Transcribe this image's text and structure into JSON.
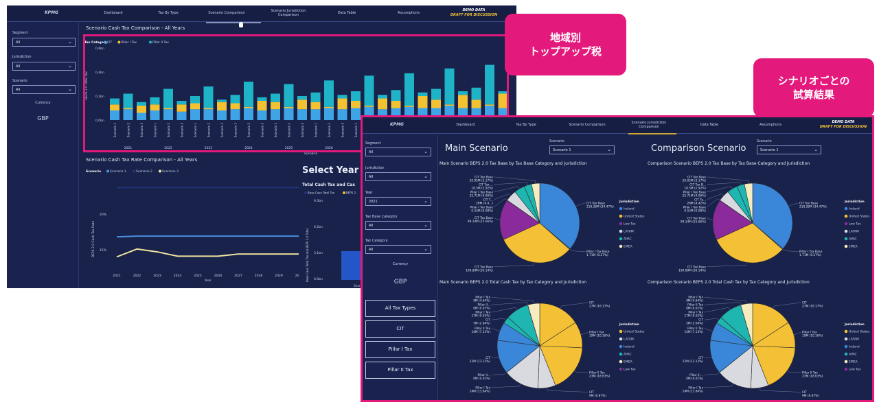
{
  "colors": {
    "accent": "#e4197c",
    "cit": "#3fa4e6",
    "pillar1": "#f2c232",
    "pillar2": "#1fb3c8",
    "Ireland": "#3a86d8",
    "United States": "#f4c136",
    "Low Tax": "#8a2a9b",
    "LATAM": "#d9d9e0",
    "APAC": "#1fb5b0",
    "EMEA": "#f7ecc0"
  },
  "callouts": {
    "regional": "地域別\nトップアップ税",
    "scenario": "シナリオごとの\n試算結果"
  },
  "nav": {
    "logo": "KPMG",
    "items": [
      "Dashboard",
      "Tax By Type",
      "Scenario Comparison",
      "Scenario Jurisdiction Comparison",
      "Data Table",
      "Assumptions"
    ],
    "demo": "DEMO DATA",
    "draft": "DRAFT FOR DISCUSSION"
  },
  "back": {
    "sidebar": {
      "segment_label": "Segment",
      "segment": "All",
      "jurisdiction_label": "Jurisdiction",
      "jurisdiction": "All",
      "scenario_label": "Scenario",
      "scenario": "All",
      "currency_label": "Currency",
      "currency": "GBP"
    },
    "bar_title": "Scenario Cash Tax Comparison - All Years",
    "line_title": "Scenario Cash Tax Rate Comparison - All Years",
    "select_year": "Select Year for",
    "right_title": "Total Cash Tax and Cas",
    "right_legend": [
      "Base Case Total Tax",
      "BEPS 2."
    ],
    "right_yticks": [
      "9.3bn",
      "6.2bn",
      "3.1bn",
      "0.0bn"
    ],
    "right_ylabel": "Base Case Total Tax and BEPS 2.0 Total",
    "right_xlabel": "Scena"
  },
  "chart_data": [
    {
      "type": "bar",
      "stacked": true,
      "legend_title": "Tax Category",
      "legend_position": "top-left",
      "ylabel": "BEPS 2.0 Total Tax",
      "xlabel": "Scenario",
      "yticks": [
        "0.0bn",
        "0.2bn",
        "0.4bn",
        "0.6bn"
      ],
      "ylim": [
        0,
        0.6
      ],
      "years": [
        "2021",
        "2022",
        "2023",
        "2024",
        "2025",
        "2026",
        "2027",
        "2028",
        "2029",
        "2030"
      ],
      "scenarios": [
        "Scenario 1",
        "Scenario 2",
        "Scenario 3"
      ],
      "series": [
        {
          "name": "CIT",
          "values": [
            0.08,
            0.09,
            0.06,
            0.08,
            0.09,
            0.07,
            0.09,
            0.09,
            0.08,
            0.09,
            0.1,
            0.08,
            0.09,
            0.1,
            0.09,
            0.09,
            0.1,
            0.09,
            0.1,
            0.11,
            0.09,
            0.1,
            0.11,
            0.1,
            0.1,
            0.12,
            0.1,
            0.1,
            0.12,
            0.1
          ]
        },
        {
          "name": "Pillar I Tax",
          "values": [
            0.05,
            0.01,
            0.06,
            0.05,
            0.01,
            0.06,
            0.05,
            0.01,
            0.07,
            0.05,
            0.01,
            0.08,
            0.06,
            0.01,
            0.08,
            0.06,
            0.01,
            0.09,
            0.06,
            0.01,
            0.09,
            0.06,
            0.01,
            0.1,
            0.07,
            0.01,
            0.11,
            0.07,
            0.01,
            0.12
          ]
        },
        {
          "name": "Pillar II Tax",
          "values": [
            0.05,
            0.12,
            0.03,
            0.06,
            0.16,
            0.03,
            0.06,
            0.18,
            0.02,
            0.07,
            0.21,
            0.03,
            0.07,
            0.19,
            0.03,
            0.08,
            0.22,
            0.03,
            0.08,
            0.25,
            0.03,
            0.09,
            0.27,
            0.03,
            0.09,
            0.3,
            0.03,
            0.1,
            0.33,
            0.02
          ]
        }
      ]
    },
    {
      "type": "line",
      "legend_title": "Scenario",
      "xlabel": "Year",
      "ylabel": "BEPS 2.0 Cash Tax Rate",
      "yticks": [
        "15%",
        "20%"
      ],
      "ylim": [
        12.5,
        24.5
      ],
      "x": [
        "2021",
        "2022",
        "2023",
        "2024",
        "2025",
        "2026",
        "2027",
        "2028",
        "2029",
        "2030"
      ],
      "series": [
        {
          "name": "Scenario 1",
          "color": "#4a8fe0",
          "values": [
            16.8,
            16.9,
            16.9,
            16.9,
            16.9,
            16.9,
            16.9,
            16.9,
            16.9,
            16.9
          ]
        },
        {
          "name": "Scenario 2",
          "color": "#24347a",
          "values": [
            23.7,
            23.7,
            23.7,
            23.7,
            23.7,
            23.7,
            23.7,
            23.7,
            23.7,
            23.7
          ]
        },
        {
          "name": "Scenario 3",
          "color": "#f2e6a0",
          "values": [
            14.0,
            15.1,
            14.7,
            14.1,
            14.1,
            14.1,
            14.4,
            14.4,
            14.4,
            14.4
          ]
        }
      ]
    },
    {
      "type": "pie",
      "id": "main-base",
      "title": "Main Scenario BEPS 2.0 Tax Base by Tax Base Category and Jurisdiction",
      "legend_title": "Jurisdiction",
      "legend": [
        "Ireland",
        "United States",
        "Low Tax",
        "LATAM",
        "APAC",
        "EMEA"
      ],
      "slices": [
        {
          "label": "CIT Tax Base 218.28M (34.47%)",
          "jurisdiction": "Ireland",
          "value": 34.47
        },
        {
          "label": "Pillar I Tax Base 1.71M (0.27%)",
          "jurisdiction": "Ireland",
          "value": 0.27
        },
        {
          "label": "CIT Tax Base 190.89M (30.14%)",
          "jurisdiction": "United States",
          "value": 30.14
        },
        {
          "label": "CIT Tax Base 99.14M (15.66%)",
          "jurisdiction": "Low Tax",
          "value": 15.66
        },
        {
          "label": "Pillar I Tax Base 0.53M (0.08%)",
          "jurisdiction": "LATAM",
          "value": 0.08
        },
        {
          "label": "CIT T... 28M (4.4...)",
          "jurisdiction": "LATAM",
          "value": 4.4
        },
        {
          "label": "Pillar I Tax Base 25.71M (4.06%)",
          "jurisdiction": "APAC",
          "value": 4.06
        },
        {
          "label": "CIT Tax ... 18.5M (2.92%)",
          "jurisdiction": "APAC",
          "value": 2.92
        },
        {
          "label": "CIT Tax Base 20.05M (3.17%)",
          "jurisdiction": "EMEA",
          "value": 3.17
        }
      ]
    },
    {
      "type": "pie",
      "id": "comp-base",
      "title": "Comparison Scenario BEPS 2.0 Tax Base by Tax Base Category and Jurisdiction",
      "legend_title": "Jurisdiction",
      "legend": [
        "Ireland",
        "United States",
        "Low Tax",
        "LATAM",
        "APAC",
        "EMEA"
      ],
      "slices": [
        {
          "label": "CIT Tax Base 218.28M (34.47%)",
          "jurisdiction": "Ireland",
          "value": 34.47
        },
        {
          "label": "Pillar I Tax Base 1.71M (0.27%)",
          "jurisdiction": "Ireland",
          "value": 0.27
        },
        {
          "label": "CIT Tax Base 190.89M (30.14%)",
          "jurisdiction": "United States",
          "value": 30.14
        },
        {
          "label": "CIT Tax Base 99.14M (15.66%)",
          "jurisdiction": "Low Tax",
          "value": 15.66
        },
        {
          "label": "Pillar I Tax Base 0.53M (0.08%)",
          "jurisdiction": "LATAM",
          "value": 0.08
        },
        {
          "label": "CIT Ta... 28M (4.42%)",
          "jurisdiction": "LATAM",
          "value": 4.42
        },
        {
          "label": "Pillar I Tax Base 25.71M (4.06%)",
          "jurisdiction": "APAC",
          "value": 4.06
        },
        {
          "label": "CIT Tax B... 18.5M (2.92%)",
          "jurisdiction": "APAC",
          "value": 2.92
        },
        {
          "label": "CIT Tax Base 20.05M (3.17%)",
          "jurisdiction": "EMEA",
          "value": 3.17
        }
      ]
    },
    {
      "type": "pie",
      "id": "main-cash",
      "title": "Main Scenario BEPS 2.0 Total Cash Tax by Tax Category and Jurisdiction",
      "legend_title": "Jurisdiction",
      "legend": [
        "United States",
        "LATAM",
        "Ireland",
        "APAC",
        "EMEA",
        "Low Tax"
      ],
      "slices": [
        {
          "label": "CIT 27M (16.17%)",
          "jurisdiction": "United States",
          "value": 16.17
        },
        {
          "label": "Pillar I Tax 19M (10.16%)",
          "jurisdiction": "United States",
          "value": 10.16
        },
        {
          "label": "Pillar II Tax 23M (18.63%)",
          "jurisdiction": "United States",
          "value": 18.63
        },
        {
          "label": "CIT 9M (6.87%)",
          "jurisdiction": "LATAM",
          "value": 6.87
        },
        {
          "label": "Pillar I Tax 24M (13.84%)",
          "jurisdiction": "LATAM",
          "value": 13.84
        },
        {
          "label": "Pillar II... 0M (0.01%)",
          "jurisdiction": "LATAM",
          "value": 0.01
        },
        {
          "label": "CIT 21M (13.12%)",
          "jurisdiction": "Ireland",
          "value": 13.12
        },
        {
          "label": "Pillar II Tax 14M (7.13%)",
          "jurisdiction": "Ireland",
          "value": 7.13
        },
        {
          "label": "CIT 5M (2.64%)",
          "jurisdiction": "APAC",
          "value": 2.64
        },
        {
          "label": "Pillar I Tax 17M (9.02%)",
          "jurisdiction": "APAC",
          "value": 9.02
        },
        {
          "label": "Pillar II... 0M (0.01%)",
          "jurisdiction": "EMEA",
          "value": 0.01
        },
        {
          "label": "Pillar I Tax 9M (4.64%)",
          "jurisdiction": "EMEA",
          "value": 4.64
        }
      ]
    },
    {
      "type": "pie",
      "id": "comp-cash",
      "title": "Comparison Scenario BEPS 2.0 Total Cash Tax by Tax Category and Jurisdiction",
      "legend_title": "Jurisdiction",
      "legend": [
        "United States",
        "LATAM",
        "Ireland",
        "APAC",
        "EMEA",
        "Low Tax"
      ],
      "slices": [
        {
          "label": "CIT 27M (16.17%)",
          "jurisdiction": "United States",
          "value": 16.17
        },
        {
          "label": "Pillar I Tax 19M (10.16%)",
          "jurisdiction": "United States",
          "value": 10.16
        },
        {
          "label": "Pillar II Tax 23M (18.63%)",
          "jurisdiction": "United States",
          "value": 18.63
        },
        {
          "label": "CIT 9M (6.87%)",
          "jurisdiction": "LATAM",
          "value": 6.87
        },
        {
          "label": "Pillar I Tax 24M (13.84%)",
          "jurisdiction": "LATAM",
          "value": 13.84
        },
        {
          "label": "Pillar II ... 0M (0.01%)",
          "jurisdiction": "LATAM",
          "value": 0.01
        },
        {
          "label": "CIT 21M (13.12%)",
          "jurisdiction": "Ireland",
          "value": 13.12
        },
        {
          "label": "Pillar II Tax 14M (7.13%)",
          "jurisdiction": "Ireland",
          "value": 7.13
        },
        {
          "label": "CIT 5M (2.64%)",
          "jurisdiction": "APAC",
          "value": 2.64
        },
        {
          "label": "Pillar I Tax 17M (9.02%)",
          "jurisdiction": "APAC",
          "value": 9.02
        },
        {
          "label": "Pillar II Tax 0M (0.01%)",
          "jurisdiction": "EMEA",
          "value": 0.01
        },
        {
          "label": "Pillar I Tax 9M (4.64%)",
          "jurisdiction": "EMEA",
          "value": 4.64
        }
      ]
    }
  ],
  "front": {
    "sidebar": {
      "segment_label": "Segment",
      "segment": "All",
      "jurisdiction_label": "Jurisdiction",
      "jurisdiction": "All",
      "year_label": "Year",
      "year": "2021",
      "tbc_label": "Tax Base Category",
      "tbc": "All",
      "tc_label": "Tax Category",
      "tc": "All",
      "currency_label": "Currency",
      "currency": "GBP",
      "buttons": [
        "All Tax Types",
        "CIT",
        "Pillar I Tax",
        "Pillar II Tax"
      ]
    },
    "main_heading": "Main Scenario",
    "comp_heading": "Comparison Scenario",
    "scenario_label": "Scenario",
    "main_scenario": "Scenario 1",
    "comp_scenario": "Scenario 1"
  }
}
